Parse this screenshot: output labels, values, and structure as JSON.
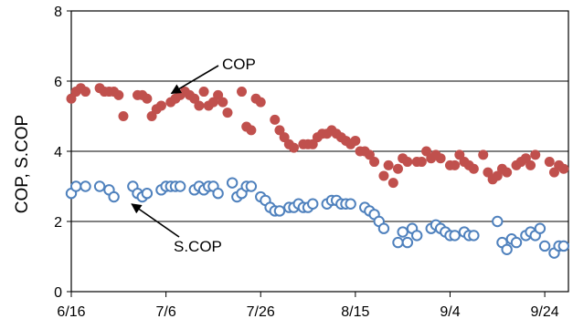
{
  "chart_data": {
    "type": "scatter",
    "title": "",
    "xlabel": "",
    "ylabel": "COP, S.COP",
    "xlim": [
      "6/16",
      "9/29"
    ],
    "ylim": [
      0,
      8
    ],
    "yticks": [
      0,
      2,
      4,
      6,
      8
    ],
    "xticks": [
      "6/16",
      "7/6",
      "7/26",
      "8/15",
      "9/4",
      "9/24"
    ],
    "grid": "horizontal",
    "legend": "none",
    "colors": {
      "COP": "#c0504d",
      "S.COP": "#4f81bd"
    },
    "annotations": [
      {
        "text": "COP",
        "target": {
          "x": "7/6",
          "y": 5.6
        }
      },
      {
        "text": "S.COP",
        "target": {
          "x": "6/28",
          "y": 2.6
        }
      }
    ],
    "series": [
      {
        "name": "COP",
        "marker": "filled-circle",
        "points": [
          [
            "6/16",
            5.5
          ],
          [
            "6/17",
            5.7
          ],
          [
            "6/18",
            5.8
          ],
          [
            "6/19",
            5.7
          ],
          [
            "6/22",
            5.8
          ],
          [
            "6/23",
            5.7
          ],
          [
            "6/24",
            5.7
          ],
          [
            "6/25",
            5.7
          ],
          [
            "6/26",
            5.6
          ],
          [
            "6/27",
            5.0
          ],
          [
            "6/30",
            5.6
          ],
          [
            "7/1",
            5.6
          ],
          [
            "7/2",
            5.5
          ],
          [
            "7/3",
            5.0
          ],
          [
            "7/4",
            5.2
          ],
          [
            "7/5",
            5.3
          ],
          [
            "7/7",
            5.4
          ],
          [
            "7/8",
            5.5
          ],
          [
            "7/9",
            5.6
          ],
          [
            "7/10",
            5.7
          ],
          [
            "7/11",
            5.6
          ],
          [
            "7/12",
            5.5
          ],
          [
            "7/13",
            5.3
          ],
          [
            "7/14",
            5.7
          ],
          [
            "7/15",
            5.3
          ],
          [
            "7/16",
            5.4
          ],
          [
            "7/17",
            5.6
          ],
          [
            "7/18",
            5.4
          ],
          [
            "7/19",
            5.1
          ],
          [
            "7/22",
            5.7
          ],
          [
            "7/23",
            4.7
          ],
          [
            "7/24",
            4.6
          ],
          [
            "7/25",
            5.5
          ],
          [
            "7/26",
            5.4
          ],
          [
            "7/29",
            4.9
          ],
          [
            "7/30",
            4.6
          ],
          [
            "7/31",
            4.4
          ],
          [
            "8/1",
            4.2
          ],
          [
            "8/2",
            4.1
          ],
          [
            "8/4",
            4.2
          ],
          [
            "8/5",
            4.2
          ],
          [
            "8/6",
            4.2
          ],
          [
            "8/7",
            4.4
          ],
          [
            "8/8",
            4.5
          ],
          [
            "8/9",
            4.5
          ],
          [
            "8/10",
            4.6
          ],
          [
            "8/11",
            4.5
          ],
          [
            "8/12",
            4.4
          ],
          [
            "8/13",
            4.3
          ],
          [
            "8/14",
            4.2
          ],
          [
            "8/15",
            4.3
          ],
          [
            "8/16",
            4.0
          ],
          [
            "8/17",
            4.0
          ],
          [
            "8/18",
            3.9
          ],
          [
            "8/19",
            3.7
          ],
          [
            "8/21",
            3.3
          ],
          [
            "8/22",
            3.6
          ],
          [
            "8/23",
            3.1
          ],
          [
            "8/24",
            3.5
          ],
          [
            "8/25",
            3.8
          ],
          [
            "8/26",
            3.7
          ],
          [
            "8/28",
            3.7
          ],
          [
            "8/29",
            3.7
          ],
          [
            "8/30",
            4.0
          ],
          [
            "8/31",
            3.8
          ],
          [
            "9/1",
            3.9
          ],
          [
            "9/2",
            3.8
          ],
          [
            "9/4",
            3.6
          ],
          [
            "9/5",
            3.6
          ],
          [
            "9/6",
            3.9
          ],
          [
            "9/7",
            3.7
          ],
          [
            "9/8",
            3.6
          ],
          [
            "9/9",
            3.5
          ],
          [
            "9/11",
            3.9
          ],
          [
            "9/12",
            3.4
          ],
          [
            "9/13",
            3.2
          ],
          [
            "9/14",
            3.3
          ],
          [
            "9/15",
            3.5
          ],
          [
            "9/16",
            3.4
          ],
          [
            "9/18",
            3.6
          ],
          [
            "9/19",
            3.7
          ],
          [
            "9/20",
            3.8
          ],
          [
            "9/21",
            3.6
          ],
          [
            "9/22",
            3.9
          ],
          [
            "9/25",
            3.7
          ],
          [
            "9/26",
            3.4
          ],
          [
            "9/27",
            3.6
          ],
          [
            "9/28",
            3.5
          ]
        ]
      },
      {
        "name": "S.COP",
        "marker": "open-circle",
        "points": [
          [
            "6/16",
            2.8
          ],
          [
            "6/17",
            3.0
          ],
          [
            "6/19",
            3.0
          ],
          [
            "6/22",
            3.0
          ],
          [
            "6/24",
            2.9
          ],
          [
            "6/25",
            2.7
          ],
          [
            "6/29",
            3.0
          ],
          [
            "6/30",
            2.8
          ],
          [
            "7/1",
            2.7
          ],
          [
            "7/2",
            2.8
          ],
          [
            "7/5",
            2.9
          ],
          [
            "7/6",
            3.0
          ],
          [
            "7/7",
            3.0
          ],
          [
            "7/8",
            3.0
          ],
          [
            "7/9",
            3.0
          ],
          [
            "7/12",
            2.9
          ],
          [
            "7/13",
            3.0
          ],
          [
            "7/14",
            2.9
          ],
          [
            "7/15",
            3.0
          ],
          [
            "7/16",
            3.0
          ],
          [
            "7/17",
            2.8
          ],
          [
            "7/20",
            3.1
          ],
          [
            "7/21",
            2.7
          ],
          [
            "7/22",
            2.8
          ],
          [
            "7/23",
            3.0
          ],
          [
            "7/24",
            3.0
          ],
          [
            "7/26",
            2.7
          ],
          [
            "7/27",
            2.6
          ],
          [
            "7/28",
            2.4
          ],
          [
            "7/29",
            2.3
          ],
          [
            "7/30",
            2.3
          ],
          [
            "8/1",
            2.4
          ],
          [
            "8/2",
            2.4
          ],
          [
            "8/3",
            2.5
          ],
          [
            "8/4",
            2.4
          ],
          [
            "8/5",
            2.4
          ],
          [
            "8/6",
            2.5
          ],
          [
            "8/9",
            2.5
          ],
          [
            "8/10",
            2.6
          ],
          [
            "8/11",
            2.6
          ],
          [
            "8/12",
            2.5
          ],
          [
            "8/13",
            2.5
          ],
          [
            "8/14",
            2.5
          ],
          [
            "8/17",
            2.4
          ],
          [
            "8/18",
            2.3
          ],
          [
            "8/19",
            2.2
          ],
          [
            "8/20",
            2.0
          ],
          [
            "8/21",
            1.8
          ],
          [
            "8/24",
            1.4
          ],
          [
            "8/25",
            1.7
          ],
          [
            "8/26",
            1.4
          ],
          [
            "8/27",
            1.8
          ],
          [
            "8/28",
            1.6
          ],
          [
            "8/31",
            1.8
          ],
          [
            "9/1",
            1.9
          ],
          [
            "9/2",
            1.8
          ],
          [
            "9/3",
            1.7
          ],
          [
            "9/4",
            1.6
          ],
          [
            "9/5",
            1.6
          ],
          [
            "9/7",
            1.7
          ],
          [
            "9/8",
            1.6
          ],
          [
            "9/9",
            1.6
          ],
          [
            "9/14",
            2.0
          ],
          [
            "9/15",
            1.4
          ],
          [
            "9/16",
            1.2
          ],
          [
            "9/17",
            1.5
          ],
          [
            "9/18",
            1.4
          ],
          [
            "9/20",
            1.6
          ],
          [
            "9/21",
            1.7
          ],
          [
            "9/22",
            1.6
          ],
          [
            "9/23",
            1.8
          ],
          [
            "9/24",
            1.3
          ],
          [
            "9/26",
            1.1
          ],
          [
            "9/27",
            1.3
          ],
          [
            "9/28",
            1.3
          ]
        ]
      }
    ]
  }
}
